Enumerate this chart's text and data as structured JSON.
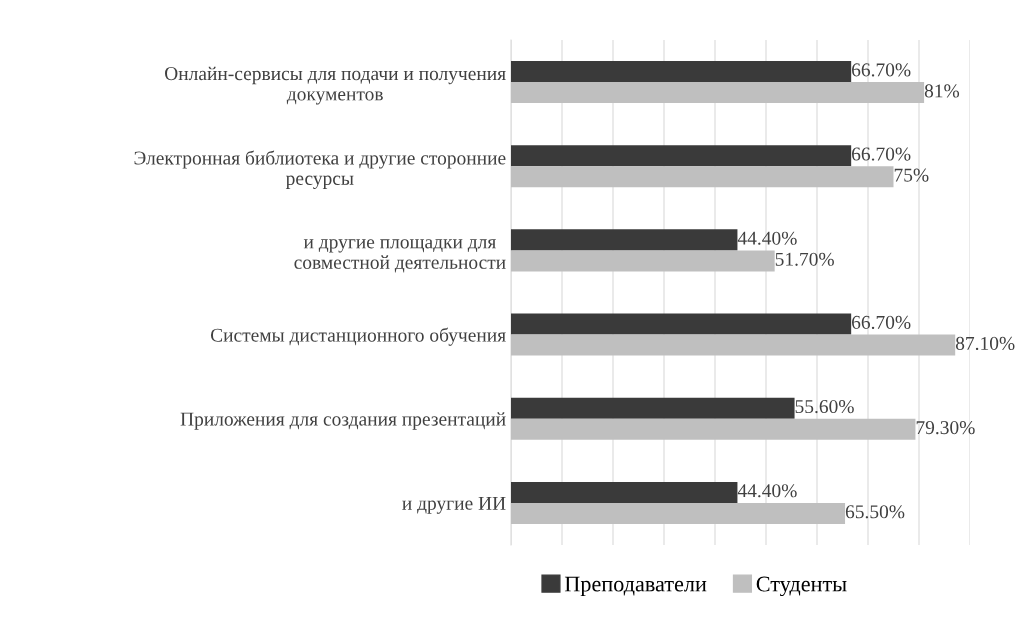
{
  "chart_data": {
    "type": "bar",
    "orientation": "horizontal",
    "categories": [
      "Онлайн-сервисы для подачи и получения\nдокументов",
      "Электронная библиотека и другие сторонние\nресурсы",
      "и другие площадки для\nсовместной деятельности",
      "Системы дистанционного обучения",
      "Приложения для создания презентаций",
      "и другие ИИ"
    ],
    "series": [
      {
        "name": "Преподаватели",
        "color": "#3a3a3a",
        "values": [
          66.7,
          66.7,
          44.4,
          66.7,
          55.6,
          44.4
        ],
        "value_labels": [
          "66.70%",
          "66.70%",
          "44.40%",
          "66.70%",
          "55.60%",
          "44.40%"
        ]
      },
      {
        "name": "Студенты",
        "color": "#bfbfbf",
        "values": [
          81,
          75,
          51.7,
          87.1,
          79.3,
          65.5
        ],
        "value_labels": [
          "81%",
          "75%",
          "51.70%",
          "87.10%",
          "79.30%",
          "65.50%"
        ]
      }
    ],
    "xlim": [
      0,
      90
    ],
    "xticks": [
      {
        "value": 0,
        "label": null
      },
      {
        "value": 10,
        "label": null
      },
      {
        "value": 20,
        "label": null
      },
      {
        "value": 30,
        "label": null
      },
      {
        "value": 40,
        "label": null
      },
      {
        "value": 50,
        "label": null
      },
      {
        "value": 60,
        "label": null
      },
      {
        "value": 70,
        "label": null
      },
      {
        "value": 80,
        "label": null
      },
      {
        "value": 90,
        "label": null
      }
    ],
    "grid": "x",
    "legend": "bottom"
  }
}
